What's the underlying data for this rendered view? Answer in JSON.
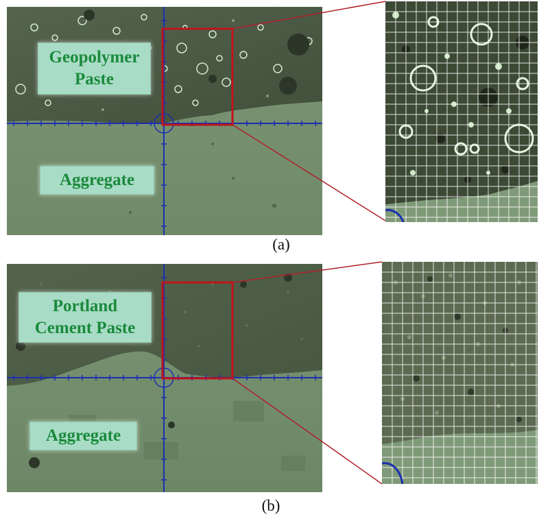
{
  "panel_a": {
    "paste_label": "Geopolymer\nPaste",
    "aggregate_label": "Aggregate",
    "caption": "(a)"
  },
  "panel_b": {
    "paste_label": "Portland\nCement Paste",
    "aggregate_label": "Aggregate",
    "caption": "(b)"
  },
  "colors": {
    "paste_dark": "#4a5a43",
    "aggregate": "#7f9a78",
    "label_bg": "#a9dcc6",
    "label_text": "#1a8a3c",
    "crosshair": "#1a2fb0",
    "zoom_box": "#c0141a"
  }
}
